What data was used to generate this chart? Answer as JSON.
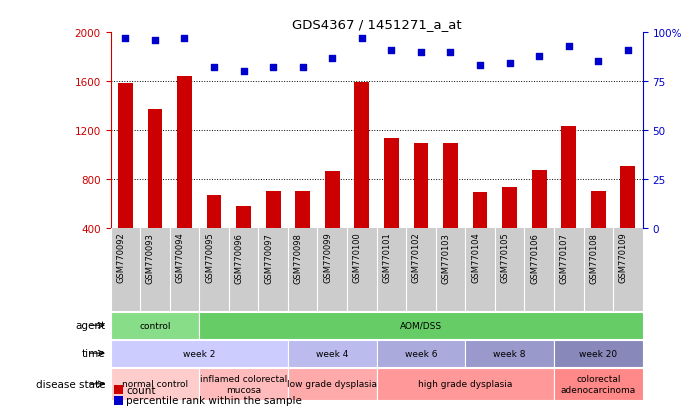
{
  "title": "GDS4367 / 1451271_a_at",
  "samples": [
    "GSM770092",
    "GSM770093",
    "GSM770094",
    "GSM770095",
    "GSM770096",
    "GSM770097",
    "GSM770098",
    "GSM770099",
    "GSM770100",
    "GSM770101",
    "GSM770102",
    "GSM770103",
    "GSM770104",
    "GSM770105",
    "GSM770106",
    "GSM770107",
    "GSM770108",
    "GSM770109"
  ],
  "counts": [
    1580,
    1370,
    1640,
    670,
    580,
    700,
    700,
    860,
    1590,
    1130,
    1090,
    1090,
    690,
    730,
    870,
    1230,
    700,
    900
  ],
  "percentiles": [
    97,
    96,
    97,
    82,
    80,
    82,
    82,
    87,
    97,
    91,
    90,
    90,
    83,
    84,
    88,
    93,
    85,
    91
  ],
  "ylim_left": [
    400,
    2000
  ],
  "ylim_right": [
    0,
    100
  ],
  "yticks_left": [
    400,
    800,
    1200,
    1600,
    2000
  ],
  "yticks_right": [
    0,
    25,
    50,
    75,
    100
  ],
  "bar_color": "#cc0000",
  "dot_color": "#0000cc",
  "grid_color": "#000000",
  "xticklabel_bg": "#cccccc",
  "agent_row": {
    "label": "agent",
    "segments": [
      {
        "text": "control",
        "start": 0,
        "end": 3,
        "color": "#88dd88"
      },
      {
        "text": "AOM/DSS",
        "start": 3,
        "end": 18,
        "color": "#66cc66"
      }
    ]
  },
  "time_row": {
    "label": "time",
    "segments": [
      {
        "text": "week 2",
        "start": 0,
        "end": 6,
        "color": "#ccccff"
      },
      {
        "text": "week 4",
        "start": 6,
        "end": 9,
        "color": "#bbbbee"
      },
      {
        "text": "week 6",
        "start": 9,
        "end": 12,
        "color": "#aaaadd"
      },
      {
        "text": "week 8",
        "start": 12,
        "end": 15,
        "color": "#9999cc"
      },
      {
        "text": "week 20",
        "start": 15,
        "end": 18,
        "color": "#8888bb"
      }
    ]
  },
  "disease_row": {
    "label": "disease state",
    "segments": [
      {
        "text": "normal control",
        "start": 0,
        "end": 3,
        "color": "#ffcccc"
      },
      {
        "text": "inflamed colorectal\nmucosa",
        "start": 3,
        "end": 6,
        "color": "#ffbbbb"
      },
      {
        "text": "low grade dysplasia",
        "start": 6,
        "end": 9,
        "color": "#ffaaaa"
      },
      {
        "text": "high grade dysplasia",
        "start": 9,
        "end": 15,
        "color": "#ff9999"
      },
      {
        "text": "colorectal\nadenocarcinoma",
        "start": 15,
        "end": 18,
        "color": "#ff8888"
      }
    ]
  },
  "legend_items": [
    {
      "label": "count",
      "color": "#cc0000"
    },
    {
      "label": "percentile rank within the sample",
      "color": "#0000cc"
    }
  ]
}
